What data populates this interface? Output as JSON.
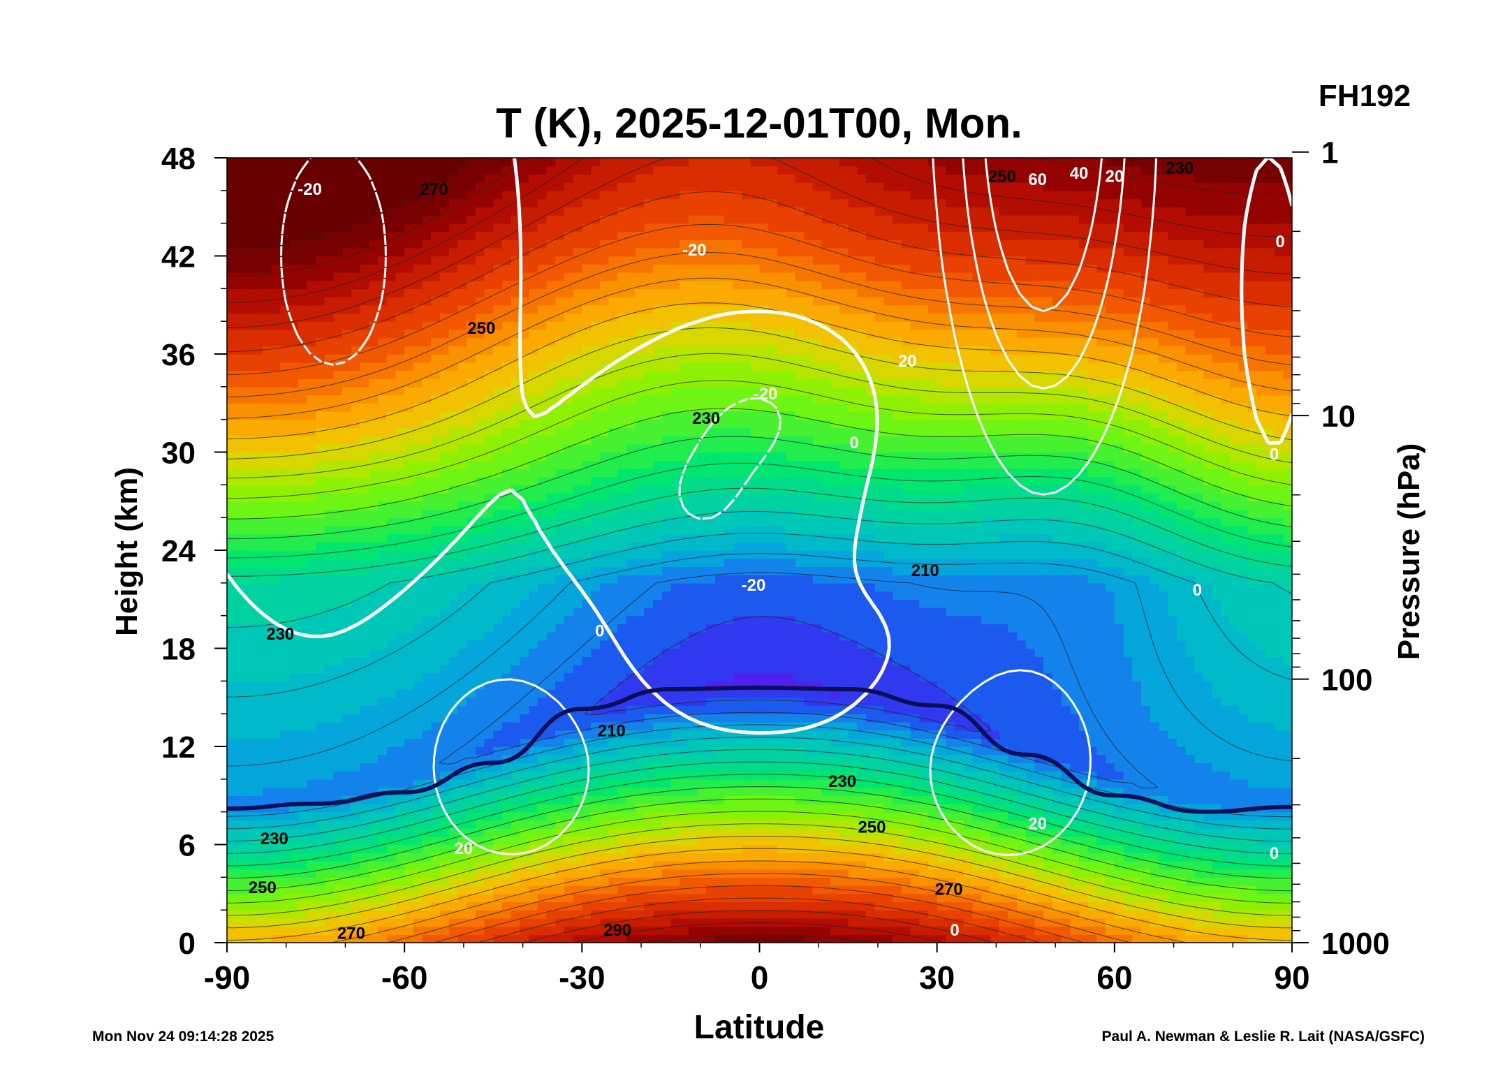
{
  "chart_data": {
    "type": "heatmap",
    "title": "T (K), 2025-12-01T00, Mon.",
    "forecast_label": "FH192",
    "xlabel": "Latitude",
    "ylabel_left": "Height (km)",
    "ylabel_right": "Pressure (hPa)",
    "xlim": [
      -90,
      90
    ],
    "ylim": [
      0,
      48
    ],
    "x_ticks": [
      -90,
      -60,
      -30,
      0,
      30,
      60,
      90
    ],
    "x_tick_labels": [
      "-90",
      "-60",
      "-30",
      "0",
      "30",
      "60",
      "90"
    ],
    "y_ticks": [
      0,
      6,
      12,
      18,
      24,
      30,
      36,
      42,
      48
    ],
    "y_tick_labels": [
      "0",
      "6",
      "12",
      "18",
      "24",
      "30",
      "36",
      "42",
      "48"
    ],
    "right_ticks_hpa": [
      1000,
      100,
      10,
      1
    ],
    "right_tick_labels": [
      "1000",
      "100",
      "10",
      "1"
    ],
    "color_scale_K": {
      "min": 190,
      "max": 300
    },
    "temperature_contour_labels": [
      {
        "text": "270",
        "lat": -55,
        "z": 46.0
      },
      {
        "text": "250",
        "lat": -47,
        "z": 37.5
      },
      {
        "text": "230",
        "lat": -9,
        "z": 32.0
      },
      {
        "text": "230",
        "lat": -81,
        "z": 18.8
      },
      {
        "text": "210",
        "lat": 28,
        "z": 22.7
      },
      {
        "text": "210",
        "lat": -25,
        "z": 12.9
      },
      {
        "text": "230",
        "lat": 14,
        "z": 9.8
      },
      {
        "text": "250",
        "lat": 19,
        "z": 7.0
      },
      {
        "text": "230",
        "lat": -82,
        "z": 6.3
      },
      {
        "text": "250",
        "lat": -84,
        "z": 3.3
      },
      {
        "text": "270",
        "lat": 32,
        "z": 3.2
      },
      {
        "text": "270",
        "lat": -69,
        "z": 0.5
      },
      {
        "text": "290",
        "lat": -24,
        "z": 0.7
      },
      {
        "text": "250",
        "lat": 41,
        "z": 46.8
      },
      {
        "text": "230",
        "lat": 71,
        "z": 47.3
      }
    ],
    "wind_contour_labels": [
      {
        "text": "-20",
        "lat": -76,
        "z": 46.0
      },
      {
        "text": "-20",
        "lat": -11,
        "z": 42.3
      },
      {
        "text": "-20",
        "lat": 1,
        "z": 33.5
      },
      {
        "text": "-20",
        "lat": -1,
        "z": 21.8
      },
      {
        "text": "0",
        "lat": 16,
        "z": 30.5
      },
      {
        "text": "0",
        "lat": -27,
        "z": 19.0
      },
      {
        "text": "0",
        "lat": 74,
        "z": 21.5
      },
      {
        "text": "0",
        "lat": 88,
        "z": 42.8
      },
      {
        "text": "0",
        "lat": 87,
        "z": 29.8
      },
      {
        "text": "0",
        "lat": 87,
        "z": 5.4
      },
      {
        "text": "0",
        "lat": 33,
        "z": 0.7
      },
      {
        "text": "20",
        "lat": 25,
        "z": 35.5
      },
      {
        "text": "20",
        "lat": 47,
        "z": 7.2
      },
      {
        "text": "20",
        "lat": -50,
        "z": 5.7
      },
      {
        "text": "20",
        "lat": 60,
        "z": 46.8
      },
      {
        "text": "40",
        "lat": 54,
        "z": 47.0
      },
      {
        "text": "60",
        "lat": 47,
        "z": 46.6
      }
    ],
    "tropopause": {
      "lat": [
        -90,
        -75,
        -60,
        -45,
        -30,
        -15,
        0,
        15,
        30,
        45,
        60,
        75,
        90
      ],
      "z": [
        8.2,
        8.5,
        9.2,
        11.0,
        14.3,
        15.5,
        15.6,
        15.5,
        14.5,
        11.5,
        9.0,
        8.0,
        8.3
      ]
    }
  },
  "footer": {
    "timestamp": "Mon Nov 24 09:14:28 2025",
    "credit": "Paul A. Newman & Leslie R. Lait (NASA/GSFC)"
  }
}
